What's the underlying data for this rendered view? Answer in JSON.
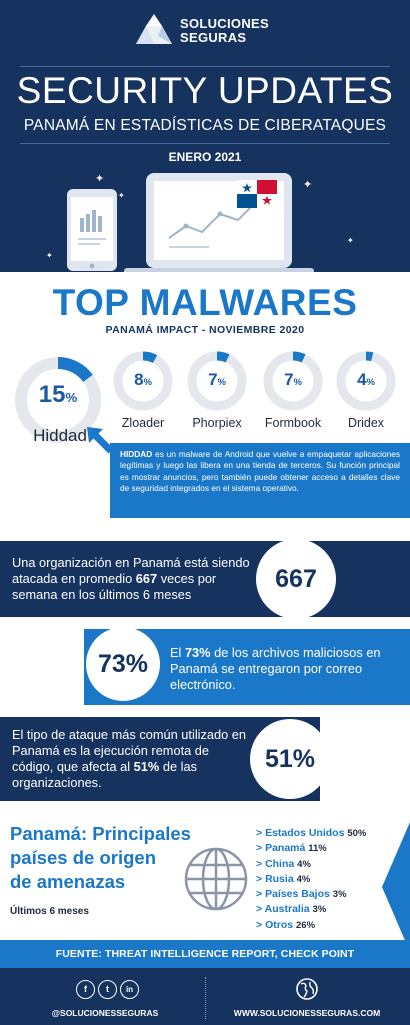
{
  "brand": {
    "name_line1": "SOLUCIONES",
    "name_line2": "SEGURAS"
  },
  "header": {
    "title": "SECURITY UPDATES",
    "subtitle": "PANAMÁ EN ESTADÍSTICAS DE CIBERATAQUES",
    "date": "ENERO 2021"
  },
  "malwares": {
    "title": "TOP MALWARES",
    "subtitle": "PANAMÁ IMPACT - NOVIEMBRE 2020",
    "items": [
      {
        "name": "Hiddad",
        "value": "15",
        "unit": "%",
        "fraction": 0.15
      },
      {
        "name": "Zloader",
        "value": "8",
        "unit": "%",
        "fraction": 0.08
      },
      {
        "name": "Phorpiex",
        "value": "7",
        "unit": "%",
        "fraction": 0.07
      },
      {
        "name": "Formbook",
        "value": "7",
        "unit": "%",
        "fraction": 0.07
      },
      {
        "name": "Dridex",
        "value": "4",
        "unit": "%",
        "fraction": 0.04
      }
    ],
    "hiddad_name": "HIDDAD",
    "hiddad_desc": " es un malware de Android que vuelve a empaquetar aplicaciones legítimas y luego las libera en una tienda de terceros. Su función principal es mostrar anuncios, pero también puede obtener acceso a detalles clave de seguridad integrados en el sistema operativo."
  },
  "stats": [
    {
      "pre": "Una organización en Panamá está siendo atacada en promedio ",
      "bold": "667",
      "post": " veces por semana en los últimos 6 meses",
      "value": "667"
    },
    {
      "pre": "El ",
      "bold": "73%",
      "post": " de los archivos maliciosos en Panamá se entregaron por correo electrónico.",
      "value": "73%"
    },
    {
      "pre": "El tipo de ataque más común utilizado en Panamá es la ejecución remota de código, que afecta al ",
      "bold": "51%",
      "post": " de las organizaciones.",
      "value": "51%"
    }
  ],
  "countries": {
    "title_line1": "Panamá: Principales",
    "title_line2": "países de origen",
    "title_line3": "de amenazas",
    "period": "Últimos 6 meses",
    "list": [
      {
        "name": "Estados Unidos",
        "value": "50%"
      },
      {
        "name": "Panamá",
        "value": "11%"
      },
      {
        "name": "China",
        "value": "4%"
      },
      {
        "name": "Rusia",
        "value": "4%"
      },
      {
        "name": "Países Bajos",
        "value": "3%"
      },
      {
        "name": "Australia",
        "value": "3%"
      },
      {
        "name": "Otros",
        "value": "26%"
      }
    ]
  },
  "footer": {
    "source": "FUENTE: THREAT INTELLIGENCE REPORT, CHECK POINT",
    "social": [
      "f",
      "t",
      "in"
    ],
    "handle": "@SOLUCIONESSEGURAS",
    "website": "WWW.SOLUCIONESSEGURAS.COM"
  },
  "colors": {
    "navy": "#16325e",
    "blue": "#1b78c8",
    "ring": "#e4e7ec"
  }
}
